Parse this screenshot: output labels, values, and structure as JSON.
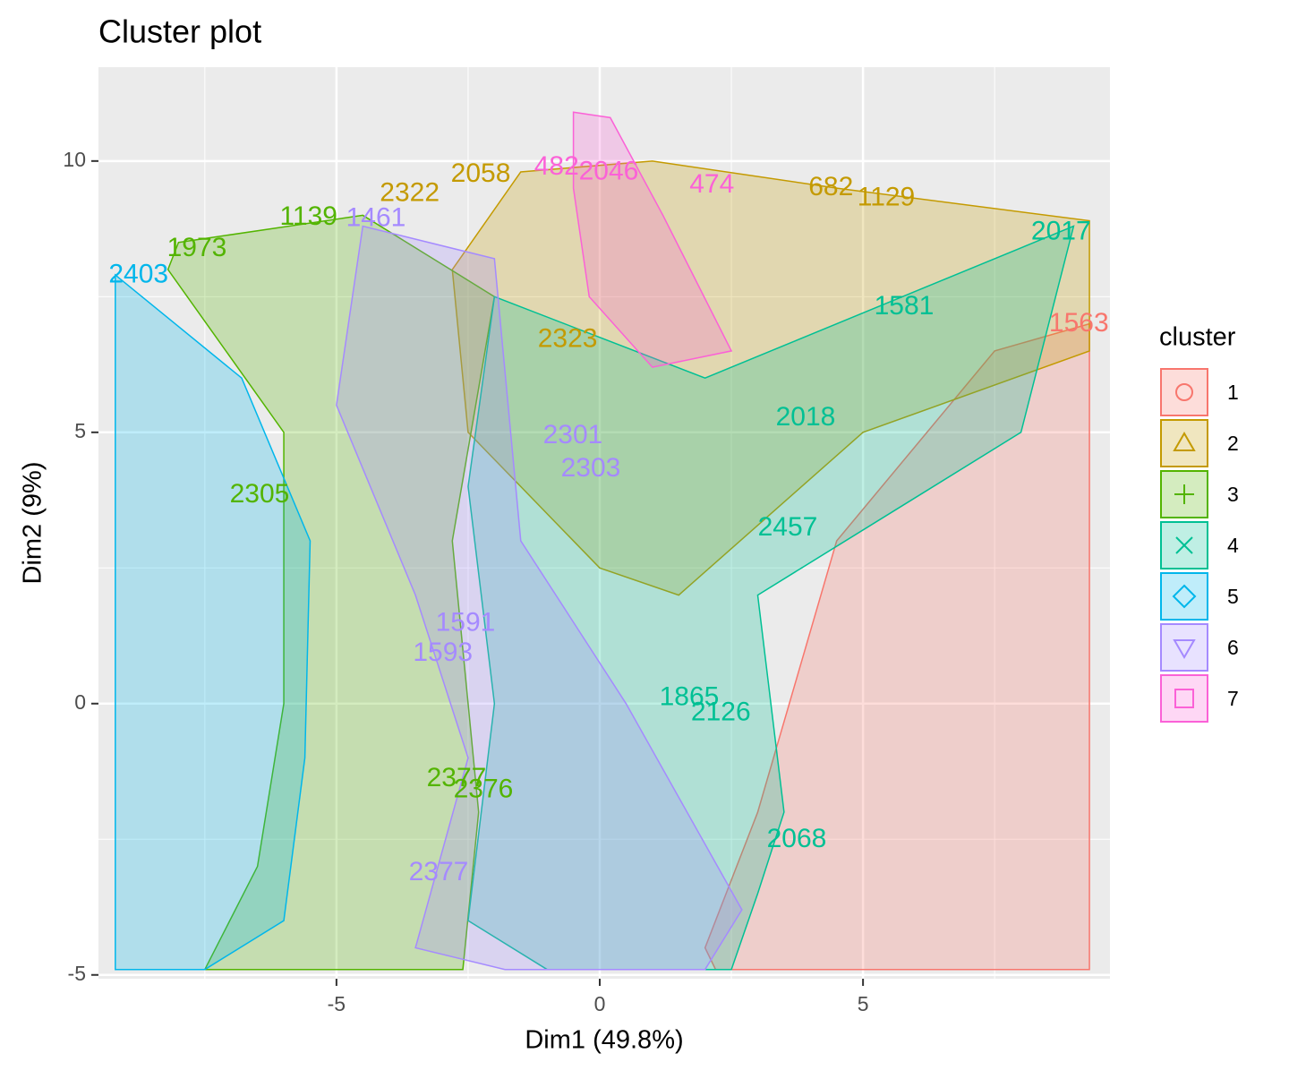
{
  "chart_data": {
    "type": "cluster",
    "title": "Cluster plot",
    "x_label": "Dim1 (49.8%)",
    "y_label": "Dim2 (9%)",
    "legend_title": "cluster",
    "legend_position": "right",
    "grid": true,
    "xlim": [
      -9.52,
      9.69
    ],
    "ylim": [
      -5.07,
      11.73
    ],
    "xticks": [
      -5,
      0,
      5
    ],
    "yticks": [
      -5,
      0,
      5,
      10
    ],
    "x_minor_ticks": [
      -7.5,
      -2.5,
      2.5,
      7.5
    ],
    "y_minor_ticks": [
      -2.5,
      2.5,
      7.5
    ],
    "series": [
      {
        "name": "1",
        "color": "#F8766D",
        "hull": {
          "x": [
            9.3,
            9.3,
            2.2,
            2.0,
            3.0,
            4.5,
            7.5
          ],
          "y": [
            7.0,
            -4.9,
            -4.9,
            -4.5,
            -2.0,
            3.0,
            6.5
          ]
        },
        "points": {
          "x": [
            9.1
          ],
          "y": [
            6.99
          ],
          "labels": [
            "1563"
          ]
        }
      },
      {
        "name": "2",
        "color": "#C49A00",
        "hull": {
          "x": [
            -2.5,
            -2.8,
            -1.5,
            1.0,
            4.5,
            9.3,
            9.3,
            5.0,
            1.5,
            0.0,
            -1.5
          ],
          "y": [
            5.0,
            8.0,
            9.8,
            10.0,
            9.5,
            8.9,
            6.5,
            5.0,
            2.0,
            2.5,
            4.0
          ]
        },
        "points": {
          "x": [
            -2.26,
            -3.61,
            4.39,
            -0.61,
            5.44
          ],
          "y": [
            9.75,
            9.39,
            9.5,
            6.7,
            9.31
          ],
          "labels": [
            "2058",
            "2322",
            "682",
            "2323",
            "1129"
          ]
        }
      },
      {
        "name": "3",
        "color": "#53B400",
        "hull": {
          "x": [
            -8.0,
            -4.5,
            -2.0,
            -2.8,
            -2.3,
            -2.6,
            -7.5,
            -6.5,
            -6.0,
            -6.0,
            -8.2
          ],
          "y": [
            8.5,
            9.0,
            7.5,
            3.0,
            -2.0,
            -4.9,
            -4.9,
            -3.0,
            0.0,
            5.0,
            8.0
          ]
        },
        "points": {
          "x": [
            -5.53,
            -7.65,
            -6.46,
            -2.72,
            -2.21
          ],
          "y": [
            8.96,
            8.38,
            3.84,
            -1.39,
            -1.6
          ],
          "labels": [
            "1139",
            "1973",
            "2305",
            "2377",
            "2376"
          ]
        }
      },
      {
        "name": "4",
        "color": "#00C094",
        "hull": {
          "x": [
            -2.0,
            2.0,
            9.0,
            8.0,
            3.0,
            3.5,
            3.0,
            2.5,
            -1.0,
            -2.5,
            -2.0,
            -2.5
          ],
          "y": [
            7.5,
            6.0,
            8.8,
            5.0,
            2.0,
            -2.0,
            -3.5,
            -4.9,
            -4.9,
            -4.0,
            0.0,
            4.0
          ]
        },
        "points": {
          "x": [
            8.76,
            3.74,
            3.91,
            3.57,
            5.78,
            1.7,
            2.3
          ],
          "y": [
            8.68,
            -2.51,
            5.26,
            3.23,
            7.31,
            0.1,
            -0.18
          ],
          "labels": [
            "2017",
            "2068",
            "2018",
            "2457",
            "1581",
            "1865",
            "2126"
          ]
        }
      },
      {
        "name": "5",
        "color": "#00B6EB",
        "hull": {
          "x": [
            -9.2,
            -6.8,
            -5.5,
            -5.6,
            -6.0,
            -7.5,
            -9.2
          ],
          "y": [
            7.9,
            6.0,
            3.0,
            -1.0,
            -4.0,
            -4.9,
            -4.9
          ]
        },
        "points": {
          "x": [
            -8.76
          ],
          "y": [
            7.89
          ],
          "labels": [
            "2403"
          ]
        }
      },
      {
        "name": "6",
        "color": "#A58AFF",
        "hull": {
          "x": [
            -4.5,
            -2.0,
            -1.5,
            -0.5,
            0.5,
            2.7,
            2.0,
            -1.8,
            -3.5,
            -2.5,
            -3.5,
            -5.0
          ],
          "y": [
            8.8,
            8.2,
            3.0,
            1.5,
            0.0,
            -3.8,
            -4.9,
            -4.9,
            -4.5,
            -1.0,
            2.0,
            5.5
          ]
        },
        "points": {
          "x": [
            -4.25,
            -0.17,
            -0.51,
            -2.55,
            -2.98,
            -3.06
          ],
          "y": [
            8.93,
            4.32,
            4.93,
            1.47,
            0.92,
            -3.12
          ],
          "labels": [
            "1461",
            "2303",
            "2301",
            "1591",
            "1593",
            "2377"
          ]
        }
      },
      {
        "name": "7",
        "color": "#FB61D7",
        "hull": {
          "x": [
            -0.5,
            0.2,
            1.2,
            2.5,
            1.0,
            -0.2,
            -0.5
          ],
          "y": [
            10.9,
            10.8,
            9.0,
            6.5,
            6.2,
            7.5,
            9.5
          ]
        },
        "points": {
          "x": [
            -0.82,
            2.13,
            0.17
          ],
          "y": [
            9.88,
            9.55,
            9.79
          ],
          "labels": [
            "482",
            "474",
            "2046"
          ]
        }
      }
    ]
  }
}
